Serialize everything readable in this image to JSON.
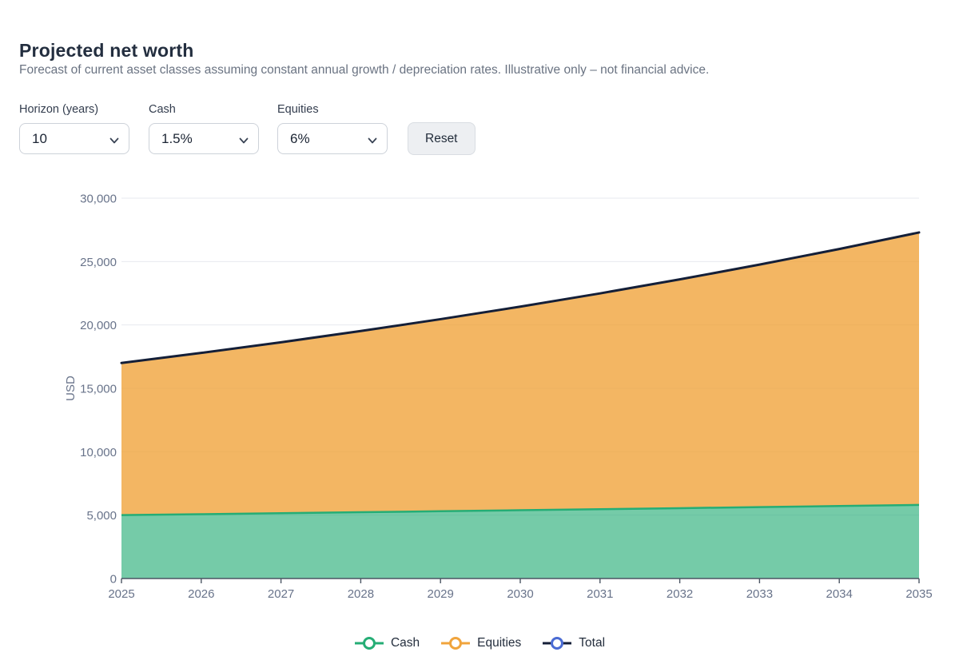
{
  "header": {
    "title": "Projected net worth",
    "subtitle": "Forecast of current asset classes assuming constant annual growth / depreciation rates. Illustrative only – not financial advice."
  },
  "controls": {
    "horizon": {
      "label": "Horizon (years)",
      "value": "10",
      "icon": "chevron-down"
    },
    "cash": {
      "label": "Cash",
      "value": "1.5%",
      "icon": "chevron-down"
    },
    "equities": {
      "label": "Equities",
      "value": "6%",
      "icon": "chevron-down"
    },
    "reset_label": "Reset"
  },
  "chart_data": {
    "type": "area",
    "stacked": true,
    "title": "",
    "xlabel": "",
    "ylabel": "USD",
    "x": [
      2025,
      2026,
      2027,
      2028,
      2029,
      2030,
      2031,
      2032,
      2033,
      2034,
      2035
    ],
    "series": [
      {
        "name": "Cash",
        "role": "stacked-area",
        "color": "#25ad75",
        "fill_opacity": 0.63,
        "values": [
          5000,
          5075,
          5151,
          5228,
          5307,
          5386,
          5467,
          5549,
          5632,
          5717,
          5803
        ]
      },
      {
        "name": "Equities",
        "role": "stacked-area",
        "color": "#f0a43c",
        "fill_opacity": 0.8,
        "values": [
          12000,
          12720,
          13483,
          14292,
          15150,
          16059,
          17022,
          18044,
          19126,
          20274,
          21490
        ]
      },
      {
        "name": "Total",
        "role": "line",
        "color": "#141f38",
        "legend_marker_color": "#4a6bd3",
        "values": [
          17000,
          17795,
          18634,
          19521,
          20456,
          21445,
          22489,
          23593,
          24759,
          25991,
          27293
        ]
      }
    ],
    "ylim": [
      0,
      30000
    ],
    "yticks": [
      0,
      5000,
      10000,
      15000,
      20000,
      25000,
      30000
    ],
    "grid": true,
    "legend_position": "bottom",
    "colors": {
      "gridline": "#e7e9ef",
      "axis": "#4b5563",
      "tick_text": "#68738a"
    }
  }
}
